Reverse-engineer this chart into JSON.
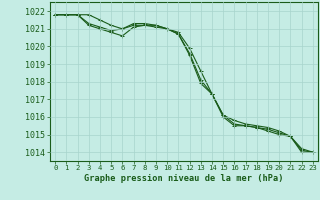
{
  "title": "Graphe pression niveau de la mer (hPa)",
  "background_color": "#c5ece4",
  "grid_color": "#a8d4cc",
  "line_color": "#1a5c1a",
  "marker_color": "#1a5c1a",
  "ylim": [
    1013.5,
    1022.5
  ],
  "xlim": [
    -0.5,
    23.5
  ],
  "yticks": [
    1014,
    1015,
    1016,
    1017,
    1018,
    1019,
    1020,
    1021,
    1022
  ],
  "xticks": [
    0,
    1,
    2,
    3,
    4,
    5,
    6,
    7,
    8,
    9,
    10,
    11,
    12,
    13,
    14,
    15,
    16,
    17,
    18,
    19,
    20,
    21,
    22,
    23
  ],
  "series": [
    [
      1021.8,
      1021.8,
      1021.8,
      1021.8,
      1021.5,
      1021.2,
      1021.0,
      1021.3,
      1021.3,
      1021.2,
      1021.0,
      1020.8,
      1019.9,
      1018.6,
      1017.3,
      1016.1,
      1015.8,
      1015.6,
      1015.5,
      1015.4,
      1015.2,
      1014.9,
      1014.2,
      1014.0
    ],
    [
      1021.8,
      1021.8,
      1021.8,
      1021.3,
      1021.1,
      1020.9,
      1021.0,
      1021.2,
      1021.2,
      1021.1,
      1021.0,
      1020.7,
      1019.6,
      1018.1,
      1017.3,
      1016.1,
      1015.6,
      1015.5,
      1015.4,
      1015.3,
      1015.1,
      1014.9,
      1014.1,
      1014.0
    ],
    [
      1021.8,
      1021.8,
      1021.8,
      1021.2,
      1021.0,
      1020.8,
      1020.6,
      1021.1,
      1021.2,
      1021.2,
      1021.0,
      1020.7,
      1019.5,
      1017.9,
      1017.3,
      1016.0,
      1015.5,
      1015.5,
      1015.4,
      1015.2,
      1015.0,
      1014.9,
      1014.0,
      1014.0
    ]
  ],
  "ytick_fontsize": 6.0,
  "xtick_fontsize": 5.2,
  "xlabel_fontsize": 6.2,
  "linewidth": 0.8,
  "markersize": 3.0,
  "markeredgewidth": 0.7
}
